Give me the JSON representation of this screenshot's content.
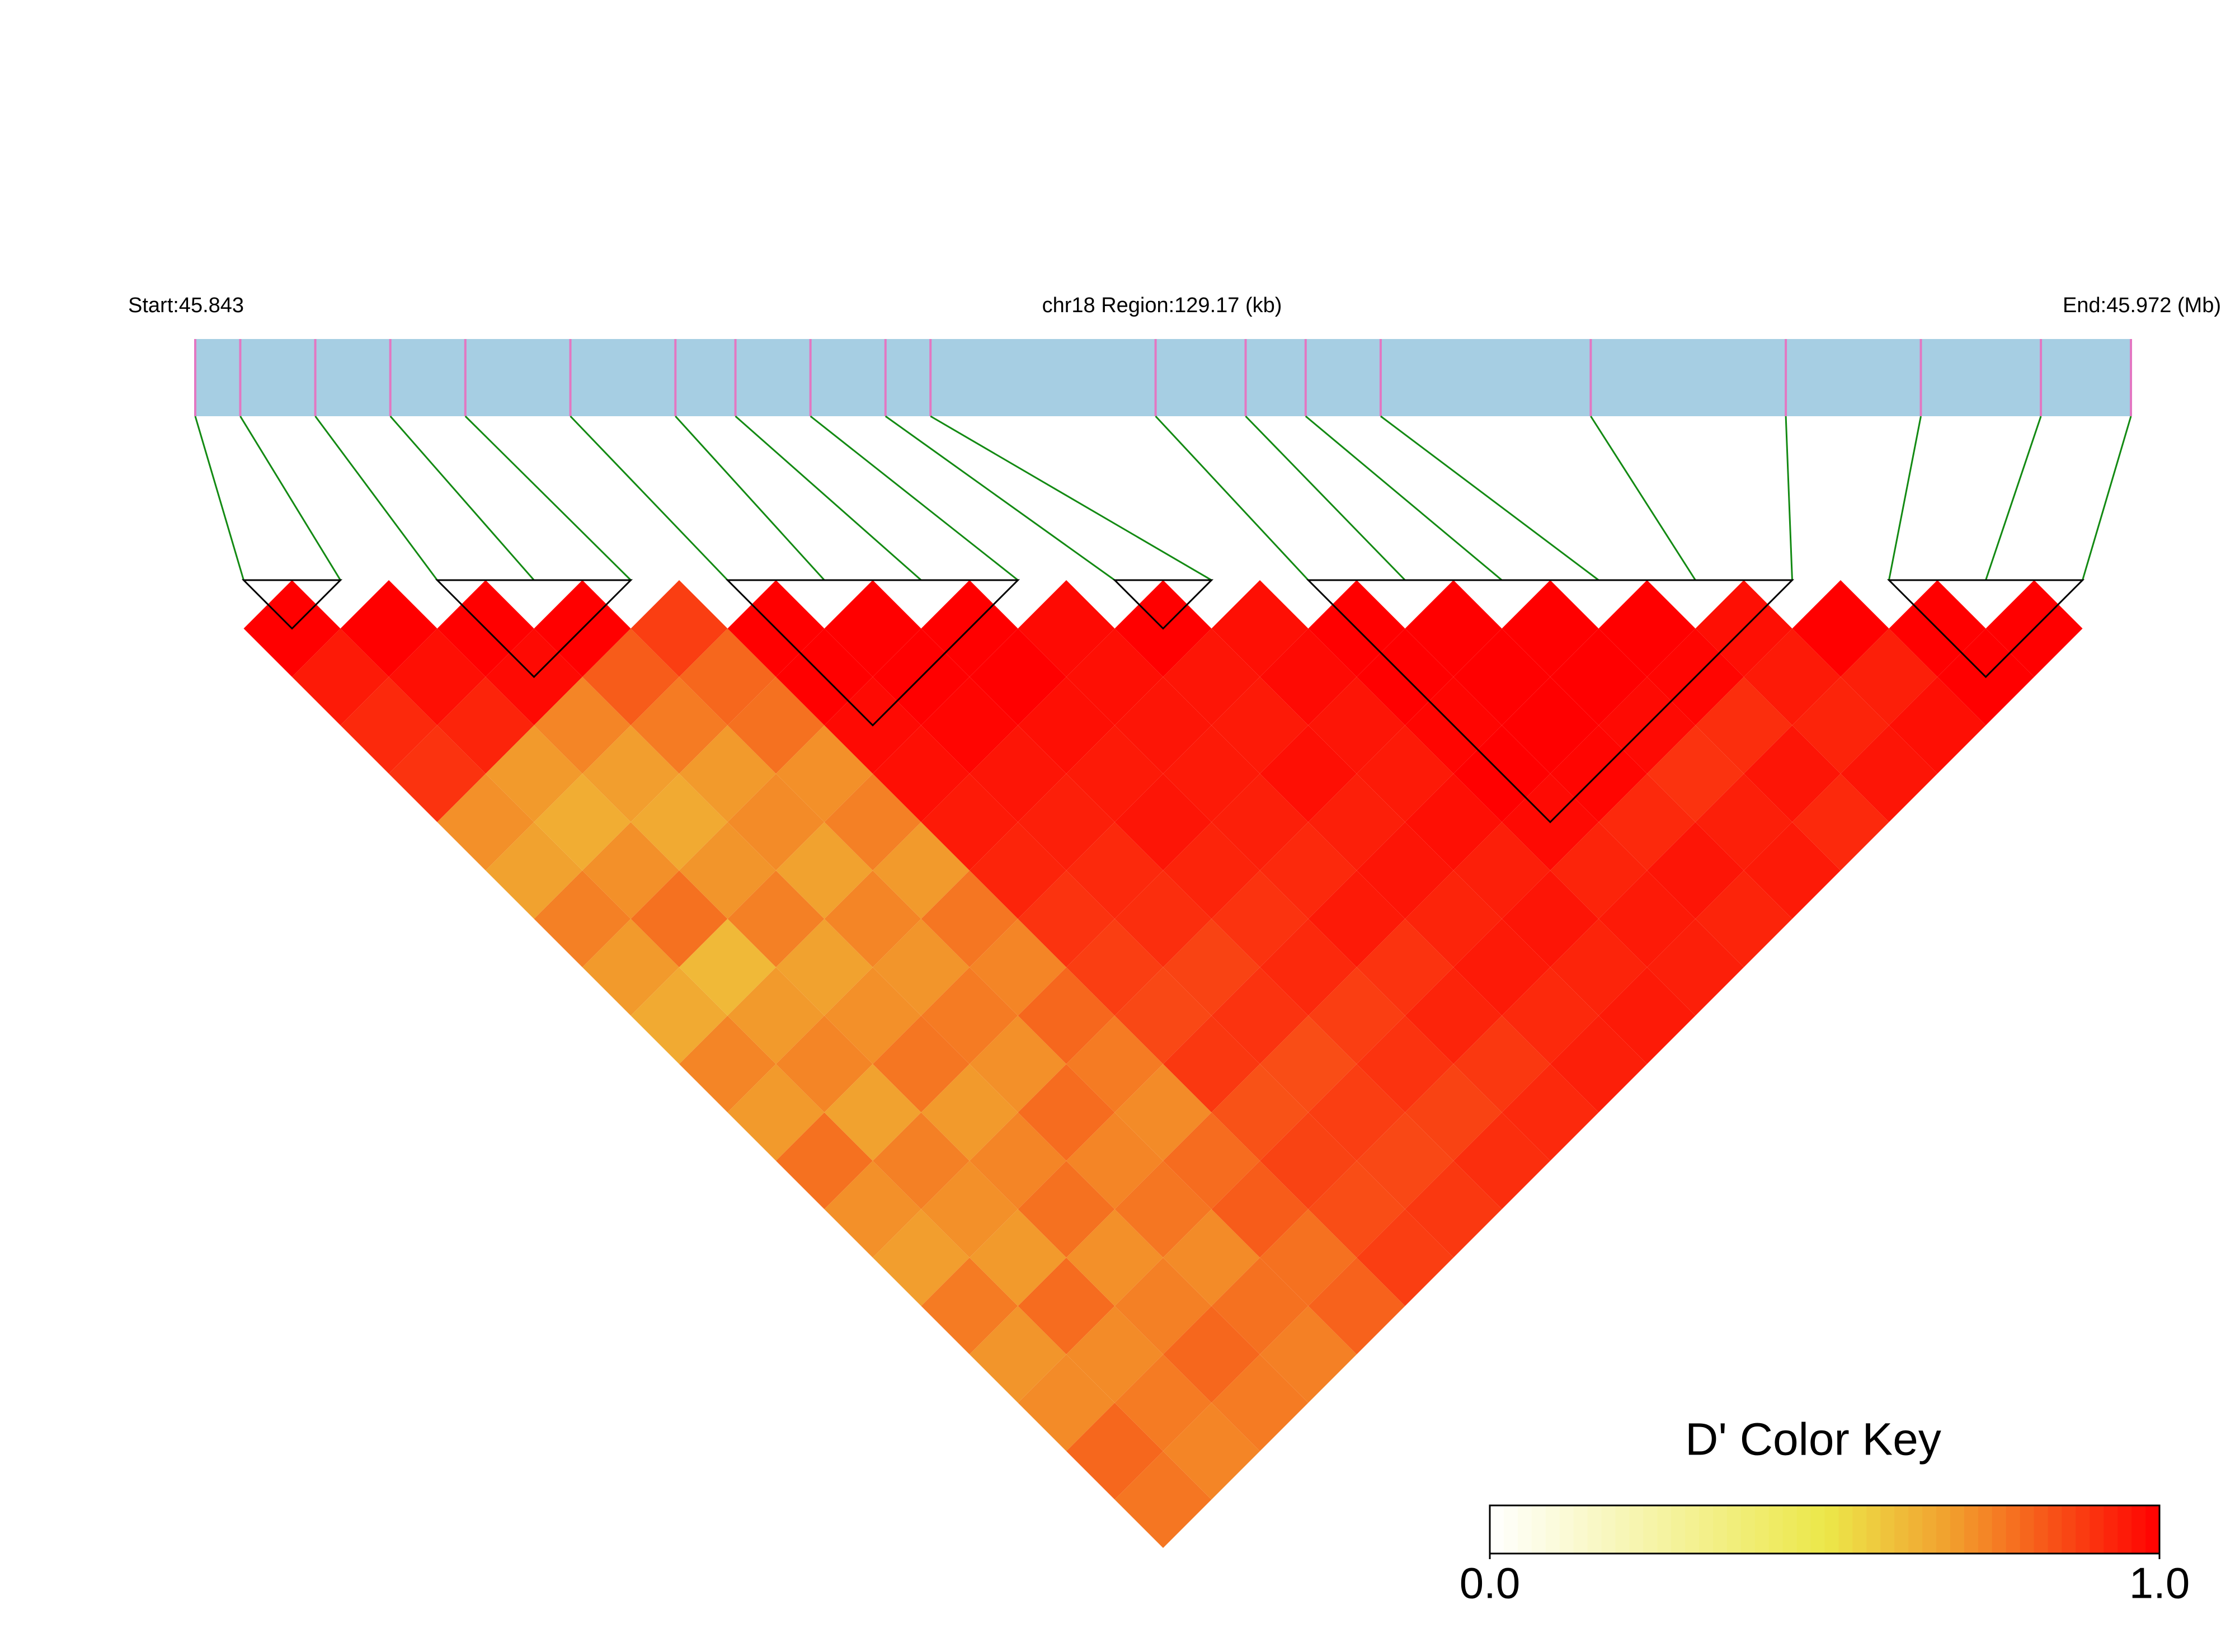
{
  "chart_data": {
    "type": "ld_heatmap",
    "start_label": "Start:45.843",
    "region_label": "chr18 Region:129.17 (kb)",
    "end_label": "End:45.972 (Mb)",
    "xlim": [
      45.843,
      45.972
    ],
    "snp_positions": [
      45.843,
      45.846,
      45.851,
      45.856,
      45.861,
      45.868,
      45.875,
      45.879,
      45.884,
      45.889,
      45.892,
      45.907,
      45.913,
      45.917,
      45.922,
      45.936,
      45.949,
      45.958,
      45.966,
      45.972
    ],
    "dprime": [
      [
        1,
        0.95,
        0.92,
        0.9,
        0.72,
        0.68,
        0.75,
        0.7,
        0.66,
        0.74,
        0.7,
        0.78,
        0.72,
        0.69,
        0.76,
        0.71,
        0.73,
        0.8,
        0.77
      ],
      [
        1,
        0.97,
        0.93,
        0.7,
        0.65,
        0.72,
        0.78,
        0.62,
        0.7,
        0.74,
        0.68,
        0.75,
        0.72,
        0.7,
        0.79,
        0.73,
        0.76,
        0.74
      ],
      [
        1,
        0.98,
        0.74,
        0.69,
        0.66,
        0.71,
        0.75,
        0.68,
        0.72,
        0.77,
        0.7,
        0.74,
        0.78,
        0.72,
        0.75,
        0.8,
        0.76
      ],
      [
        1,
        0.82,
        0.76,
        0.7,
        0.73,
        0.68,
        0.74,
        0.71,
        0.76,
        0.72,
        0.79,
        0.74,
        0.77,
        0.73,
        0.78,
        0.75
      ],
      [
        0.88,
        0.8,
        0.78,
        0.72,
        0.75,
        0.7,
        0.77,
        0.74,
        0.8,
        0.76,
        0.73,
        0.79,
        0.82,
        0.78,
        0.81
      ],
      [
        1,
        1,
        0.98,
        0.97,
        0.95,
        0.93,
        0.9,
        0.88,
        0.86,
        0.89,
        0.84,
        0.87,
        0.85,
        0.88
      ],
      [
        1,
        1,
        0.99,
        0.96,
        0.94,
        0.92,
        0.91,
        0.87,
        0.9,
        0.85,
        0.88,
        0.86,
        0.89
      ],
      [
        1,
        1,
        0.97,
        0.95,
        0.96,
        0.93,
        0.9,
        0.92,
        0.88,
        0.9,
        0.87,
        0.91
      ],
      [
        0.98,
        0.97,
        0.96,
        0.95,
        0.94,
        0.92,
        0.95,
        0.9,
        0.93,
        0.89,
        0.92
      ],
      [
        1,
        0.96,
        0.95,
        0.97,
        0.94,
        0.96,
        0.93,
        0.95,
        0.92,
        0.94
      ],
      [
        0.97,
        0.98,
        0.96,
        0.95,
        0.97,
        0.94,
        0.96,
        0.93,
        0.95
      ],
      [
        1,
        1,
        0.99,
        1,
        0.98,
        0.93,
        0.95,
        0.94
      ],
      [
        1,
        1,
        1,
        0.99,
        0.92,
        0.96,
        0.93
      ],
      [
        1,
        1,
        0.98,
        0.9,
        0.94,
        0.95
      ],
      [
        1,
        0.99,
        0.91,
        0.96,
        0.92
      ],
      [
        0.97,
        0.95,
        0.93,
        0.96
      ],
      [
        1,
        0.94,
        0.97
      ],
      [
        1,
        1
      ],
      [
        1
      ]
    ],
    "blocks": [
      [
        0,
        1
      ],
      [
        2,
        4
      ],
      [
        5,
        8
      ],
      [
        9,
        10
      ],
      [
        11,
        16
      ],
      [
        17,
        19
      ]
    ],
    "bar_color": "#a6cee3",
    "snp_tick_color": "#e377c2",
    "link_color": "#138a13",
    "block_outline_color": "#000000",
    "color_key": {
      "title": "D' Color Key",
      "stops": [
        {
          "value": 0,
          "color": "#ffffff"
        },
        {
          "value": 0.5,
          "color": "#ece84a"
        },
        {
          "value": 0.7,
          "color": "#f29a2c"
        },
        {
          "value": 1,
          "color": "#ff0000"
        }
      ],
      "ticks": [
        {
          "value": 0,
          "label": "0.0"
        },
        {
          "value": 1,
          "label": "1.0"
        }
      ]
    }
  }
}
